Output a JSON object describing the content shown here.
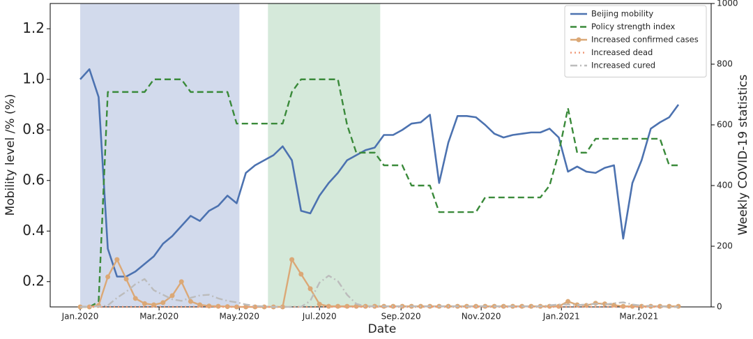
{
  "chart_data": {
    "type": "line",
    "x_label": "Date",
    "y_label": "Mobility level /% (%)",
    "y2_label": "Weekly COVID-19 statistics",
    "x": [
      0,
      1,
      2,
      3,
      4,
      5,
      6,
      7,
      8,
      9,
      10,
      11,
      12,
      13,
      14,
      15,
      16,
      17,
      18,
      19,
      20,
      21,
      22,
      23,
      24,
      25,
      26,
      27,
      28,
      29,
      30,
      31,
      32,
      33,
      34,
      35,
      36,
      37,
      38,
      39,
      40,
      41,
      42,
      43,
      44,
      45,
      46,
      47,
      48,
      49,
      50,
      51,
      52,
      53,
      54,
      55,
      56,
      57,
      58,
      59,
      60,
      61,
      62,
      63,
      64,
      65
    ],
    "xlim": [
      -3.26,
      68.56
    ],
    "xticks": [
      {
        "value": 0,
        "label": "Jan.2020"
      },
      {
        "value": 8.57,
        "label": "Mar.2020"
      },
      {
        "value": 17.29,
        "label": "May.2020"
      },
      {
        "value": 26,
        "label": "Jul.2020"
      },
      {
        "value": 34.86,
        "label": "Sep.2020"
      },
      {
        "value": 43.57,
        "label": "Nov.2020"
      },
      {
        "value": 52.29,
        "label": "Jan.2021"
      },
      {
        "value": 60.71,
        "label": "Mar.2021"
      }
    ],
    "ylim": [
      0.1,
      1.3
    ],
    "yticks": [
      0.2,
      0.4,
      0.6,
      0.8,
      {
        "value": 1,
        "label": "1.0"
      },
      1.2
    ],
    "y2lim": [
      0,
      1000
    ],
    "y2ticks": [
      0,
      200,
      400,
      600,
      800,
      1000
    ],
    "spans": [
      {
        "x": [
          0,
          17.3
        ],
        "color": "#cdd6ea"
      },
      {
        "x": [
          20.4,
          32.6
        ],
        "color": "#d0e7d6"
      }
    ],
    "series": [
      {
        "name": "Beijing mobility",
        "color": "#4c72b0",
        "style": "solid",
        "values": [
          1.0,
          1.04,
          0.93,
          0.33,
          0.22,
          0.22,
          0.24,
          0.27,
          0.3,
          0.35,
          0.38,
          0.42,
          0.46,
          0.44,
          0.48,
          0.5,
          0.54,
          0.51,
          0.63,
          0.66,
          0.68,
          0.7,
          0.735,
          0.68,
          0.48,
          0.47,
          0.54,
          0.59,
          0.63,
          0.68,
          0.7,
          0.72,
          0.73,
          0.78,
          0.78,
          0.8,
          0.825,
          0.83,
          0.86,
          0.59,
          0.75,
          0.855,
          0.855,
          0.85,
          0.82,
          0.785,
          0.77,
          0.78,
          0.785,
          0.79,
          0.79,
          0.805,
          0.77,
          0.635,
          0.655,
          0.635,
          0.63,
          0.65,
          0.66,
          0.37,
          0.59,
          0.68,
          0.805,
          0.83,
          0.85,
          0.9
        ]
      },
      {
        "name": "Policy strength index",
        "color": "#3a8a3a",
        "style": "dashed",
        "values": [
          0.1,
          0.1,
          0.12,
          0.95,
          0.95,
          0.95,
          0.95,
          0.95,
          1.0,
          1.0,
          1.0,
          1.0,
          0.95,
          0.95,
          0.95,
          0.95,
          0.95,
          0.825,
          0.825,
          0.825,
          0.825,
          0.825,
          0.825,
          0.95,
          1.0,
          1.0,
          1.0,
          1.0,
          1.0,
          0.82,
          0.71,
          0.71,
          0.71,
          0.66,
          0.66,
          0.66,
          0.58,
          0.58,
          0.58,
          0.475,
          0.475,
          0.475,
          0.475,
          0.475,
          0.533,
          0.533,
          0.533,
          0.533,
          0.533,
          0.533,
          0.533,
          0.58,
          0.71,
          0.886,
          0.71,
          0.71,
          0.765,
          0.765,
          0.765,
          0.765,
          0.765,
          0.765,
          0.765,
          0.765,
          0.66,
          0.66
        ]
      },
      {
        "name": "Increased confirmed cases",
        "color": "#dba876",
        "style": "marker",
        "axis": "y2",
        "values": [
          0,
          0,
          5,
          99,
          156,
          92,
          28,
          11,
          7,
          14,
          37,
          83,
          18,
          7,
          3,
          2,
          1,
          0,
          0,
          0,
          0,
          0,
          0,
          156,
          108,
          60,
          9,
          2,
          2,
          2,
          2,
          2,
          2,
          2,
          2,
          2,
          2,
          2,
          2,
          2,
          2,
          2,
          2,
          2,
          2,
          2,
          2,
          2,
          2,
          2,
          2,
          2,
          2,
          18,
          7,
          5,
          12,
          10,
          6,
          2,
          2,
          2,
          2,
          2,
          2,
          2
        ]
      },
      {
        "name": "Increased dead",
        "color": "#f09a78",
        "style": "dotted",
        "axis": "y2",
        "values": [
          0,
          0,
          0,
          0,
          0,
          0,
          0,
          0,
          0,
          0,
          0,
          0,
          0,
          0,
          0,
          0,
          0,
          0,
          0,
          0,
          0,
          0,
          0,
          0,
          0,
          0,
          0,
          0,
          0,
          0,
          0,
          0,
          0,
          0,
          0,
          0,
          0,
          0,
          0,
          0,
          0,
          0,
          0,
          0,
          0,
          0,
          0,
          0,
          0,
          0,
          0,
          0,
          0,
          0,
          0,
          0,
          0,
          0,
          0,
          0,
          0,
          0,
          0,
          0,
          0,
          0
        ]
      },
      {
        "name": "Increased cured",
        "color": "#bcbcbc",
        "style": "dashdot",
        "axis": "y2",
        "values": [
          0,
          0,
          2,
          5,
          30,
          50,
          75,
          92,
          55,
          40,
          25,
          20,
          30,
          38,
          40,
          28,
          20,
          15,
          8,
          3,
          2,
          0,
          0,
          0,
          0,
          20,
          80,
          103,
          85,
          40,
          10,
          2,
          2,
          2,
          2,
          2,
          2,
          2,
          2,
          2,
          2,
          2,
          2,
          2,
          2,
          2,
          2,
          2,
          2,
          2,
          2,
          5,
          8,
          8,
          6,
          8,
          10,
          8,
          12,
          15,
          8,
          4,
          3,
          2,
          0,
          0
        ]
      }
    ],
    "legend": "upper right"
  }
}
